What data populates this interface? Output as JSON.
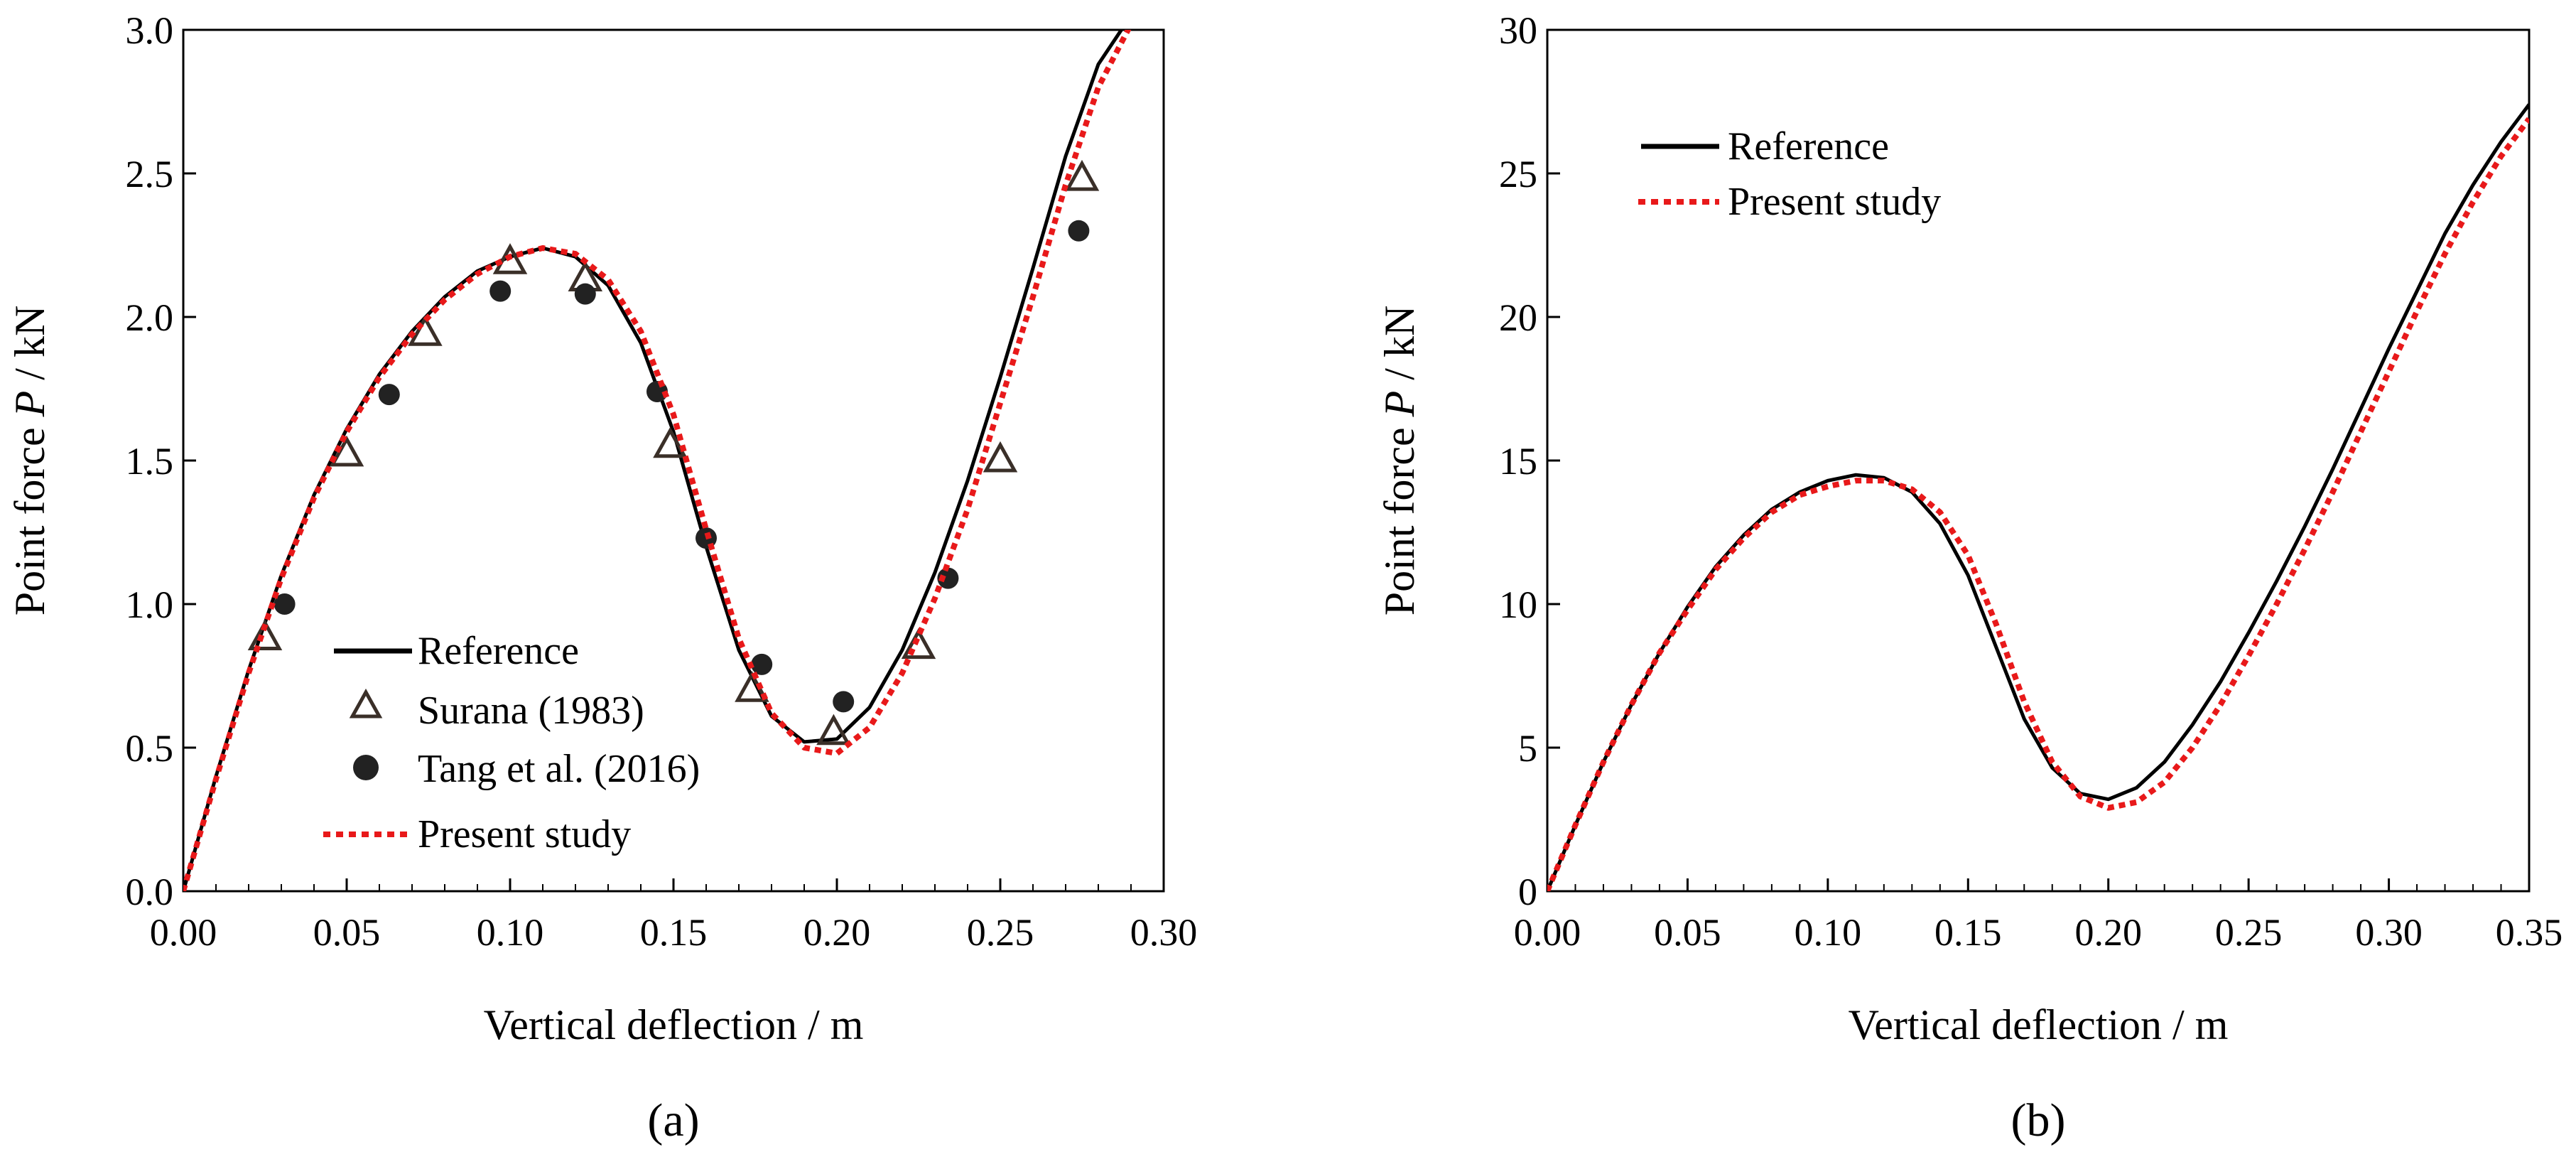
{
  "chart_data": [
    {
      "type": "line",
      "panel_label": "(a)",
      "xlabel": "Vertical deflection / m",
      "ylabel_prefix": "Point force ",
      "ylabel_var": "P",
      "ylabel_suffix": " / kN",
      "xlim": [
        0.0,
        0.3
      ],
      "ylim": [
        0.0,
        3.0
      ],
      "x_ticks": [
        "0.00",
        "0.05",
        "0.10",
        "0.15",
        "0.20",
        "0.25",
        "0.30"
      ],
      "y_ticks": [
        "0.0",
        "0.5",
        "1.0",
        "1.5",
        "2.0",
        "2.5",
        "3.0"
      ],
      "grid": false,
      "legend_position": "lower-left",
      "series": [
        {
          "name": "Reference",
          "style": "solid-line",
          "color": "#000000",
          "x": [
            0.0,
            0.01,
            0.02,
            0.03,
            0.04,
            0.05,
            0.06,
            0.07,
            0.08,
            0.09,
            0.1,
            0.11,
            0.12,
            0.13,
            0.14,
            0.15,
            0.16,
            0.17,
            0.18,
            0.19,
            0.2,
            0.21,
            0.22,
            0.23,
            0.24,
            0.25,
            0.26,
            0.27,
            0.28,
            0.29
          ],
          "y": [
            0.0,
            0.4,
            0.77,
            1.1,
            1.38,
            1.61,
            1.8,
            1.95,
            2.07,
            2.16,
            2.21,
            2.24,
            2.21,
            2.11,
            1.91,
            1.6,
            1.2,
            0.84,
            0.61,
            0.52,
            0.53,
            0.64,
            0.84,
            1.11,
            1.43,
            1.79,
            2.17,
            2.56,
            2.88,
            3.05
          ]
        },
        {
          "name": "Surana (1983)",
          "style": "open-triangle",
          "color": "#3a2f28",
          "x": [
            0.025,
            0.05,
            0.074,
            0.1,
            0.123,
            0.149,
            0.174,
            0.199,
            0.225,
            0.25,
            0.275
          ],
          "y": [
            0.88,
            1.52,
            1.94,
            2.19,
            2.13,
            1.55,
            0.7,
            0.55,
            0.85,
            1.5,
            2.48
          ]
        },
        {
          "name": "Tang et al. (2016)",
          "style": "filled-circle",
          "color": "#222222",
          "x": [
            0.031,
            0.063,
            0.097,
            0.123,
            0.145,
            0.16,
            0.177,
            0.202,
            0.234,
            0.274
          ],
          "y": [
            1.0,
            1.73,
            2.09,
            2.08,
            1.74,
            1.23,
            0.79,
            0.66,
            1.09,
            2.3
          ]
        },
        {
          "name": "Present study",
          "style": "dotted-line",
          "color": "#e8191a",
          "x": [
            0.0,
            0.01,
            0.02,
            0.03,
            0.04,
            0.05,
            0.06,
            0.07,
            0.08,
            0.09,
            0.1,
            0.11,
            0.12,
            0.13,
            0.14,
            0.15,
            0.16,
            0.17,
            0.18,
            0.19,
            0.2,
            0.21,
            0.22,
            0.23,
            0.24,
            0.25,
            0.26,
            0.27,
            0.28,
            0.29
          ],
          "y": [
            0.0,
            0.39,
            0.76,
            1.09,
            1.37,
            1.6,
            1.79,
            1.94,
            2.06,
            2.15,
            2.21,
            2.24,
            2.22,
            2.13,
            1.95,
            1.66,
            1.26,
            0.88,
            0.62,
            0.5,
            0.48,
            0.57,
            0.76,
            1.02,
            1.33,
            1.7,
            2.07,
            2.46,
            2.8,
            3.02
          ]
        }
      ]
    },
    {
      "type": "line",
      "panel_label": "(b)",
      "xlabel": "Vertical deflection / m",
      "ylabel_prefix": "Point force ",
      "ylabel_var": "P",
      "ylabel_suffix": " / kN",
      "xlim": [
        0.0,
        0.35
      ],
      "ylim": [
        0,
        30
      ],
      "x_ticks": [
        "0.00",
        "0.05",
        "0.10",
        "0.15",
        "0.20",
        "0.25",
        "0.30",
        "0.35"
      ],
      "y_ticks": [
        "0",
        "5",
        "10",
        "15",
        "20",
        "25",
        "30"
      ],
      "grid": false,
      "legend_position": "upper-left",
      "series": [
        {
          "name": "Reference",
          "style": "solid-line",
          "color": "#000000",
          "x": [
            0.0,
            0.01,
            0.02,
            0.03,
            0.04,
            0.05,
            0.06,
            0.07,
            0.08,
            0.09,
            0.1,
            0.11,
            0.12,
            0.13,
            0.14,
            0.15,
            0.16,
            0.17,
            0.18,
            0.19,
            0.2,
            0.21,
            0.22,
            0.23,
            0.24,
            0.25,
            0.26,
            0.27,
            0.28,
            0.29,
            0.3,
            0.31,
            0.32,
            0.33,
            0.34,
            0.35
          ],
          "y": [
            0.0,
            2.3,
            4.5,
            6.5,
            8.3,
            9.9,
            11.3,
            12.4,
            13.3,
            13.9,
            14.3,
            14.5,
            14.4,
            13.9,
            12.8,
            11.0,
            8.5,
            6.0,
            4.3,
            3.4,
            3.2,
            3.6,
            4.5,
            5.8,
            7.3,
            9.0,
            10.8,
            12.7,
            14.7,
            16.8,
            18.9,
            20.9,
            22.9,
            24.6,
            26.1,
            27.4
          ]
        },
        {
          "name": "Present study",
          "style": "dotted-line",
          "color": "#e8191a",
          "x": [
            0.0,
            0.01,
            0.02,
            0.03,
            0.04,
            0.05,
            0.06,
            0.07,
            0.08,
            0.09,
            0.1,
            0.11,
            0.12,
            0.13,
            0.14,
            0.15,
            0.16,
            0.17,
            0.18,
            0.19,
            0.2,
            0.21,
            0.22,
            0.23,
            0.24,
            0.25,
            0.26,
            0.27,
            0.28,
            0.29,
            0.3,
            0.31,
            0.32,
            0.33,
            0.34,
            0.35
          ],
          "y": [
            0.0,
            2.3,
            4.5,
            6.5,
            8.3,
            9.8,
            11.2,
            12.3,
            13.2,
            13.8,
            14.1,
            14.3,
            14.3,
            14.0,
            13.2,
            11.7,
            9.3,
            6.6,
            4.5,
            3.3,
            2.9,
            3.1,
            3.8,
            5.0,
            6.5,
            8.2,
            10.0,
            11.9,
            13.9,
            16.0,
            18.1,
            20.2,
            22.2,
            24.0,
            25.6,
            26.9
          ]
        }
      ]
    }
  ]
}
